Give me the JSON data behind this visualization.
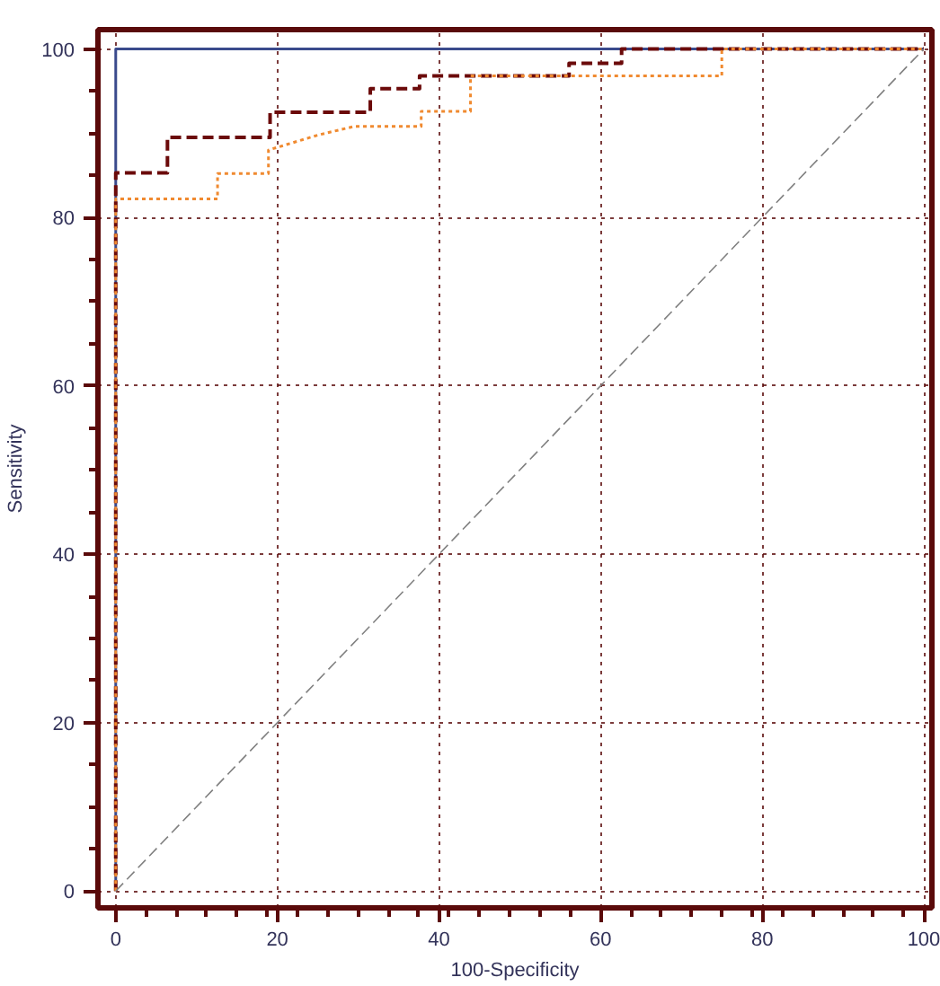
{
  "chart_data": {
    "type": "line",
    "xlabel": "100-Specificity",
    "ylabel": "Sensitivity",
    "xlim": [
      -2.2,
      101
    ],
    "ylim": [
      -2,
      102.3
    ],
    "xticks": [
      0,
      20,
      40,
      60,
      80,
      100
    ],
    "yticks": [
      0,
      20,
      40,
      60,
      80,
      100
    ],
    "grid": true,
    "marker": "none",
    "series": [
      {
        "color": "#3a4a8c",
        "line_style": "solid",
        "x": [
          0,
          0,
          100
        ],
        "values": [
          0,
          100,
          100
        ]
      },
      {
        "color": "#6b0a0a",
        "line_style": "dashed",
        "x": [
          0,
          0,
          6.4,
          6.4,
          19.1,
          19.1,
          31.5,
          31.5,
          37.6,
          37.6,
          56.1,
          56.1,
          62.6,
          62.6,
          100
        ],
        "values": [
          0,
          85.3,
          85.3,
          89.5,
          89.5,
          92.5,
          92.5,
          95.3,
          95.3,
          96.8,
          96.8,
          98.3,
          98.3,
          100,
          100
        ]
      },
      {
        "color": "#f08a30",
        "line_style": "dotted",
        "x": [
          0,
          0,
          12.6,
          12.6,
          18.9,
          18.9,
          25.1,
          29.5,
          37.8,
          37.8,
          43.9,
          43.9,
          75,
          75,
          100
        ],
        "values": [
          0,
          82.2,
          82.2,
          85.2,
          85.2,
          88,
          89.8,
          90.8,
          90.8,
          92.6,
          92.6,
          96.8,
          96.8,
          100,
          100
        ]
      },
      {
        "color": "#808080",
        "line_style": "dashed",
        "x": [
          0,
          100
        ],
        "values": [
          0,
          100
        ]
      }
    ]
  }
}
